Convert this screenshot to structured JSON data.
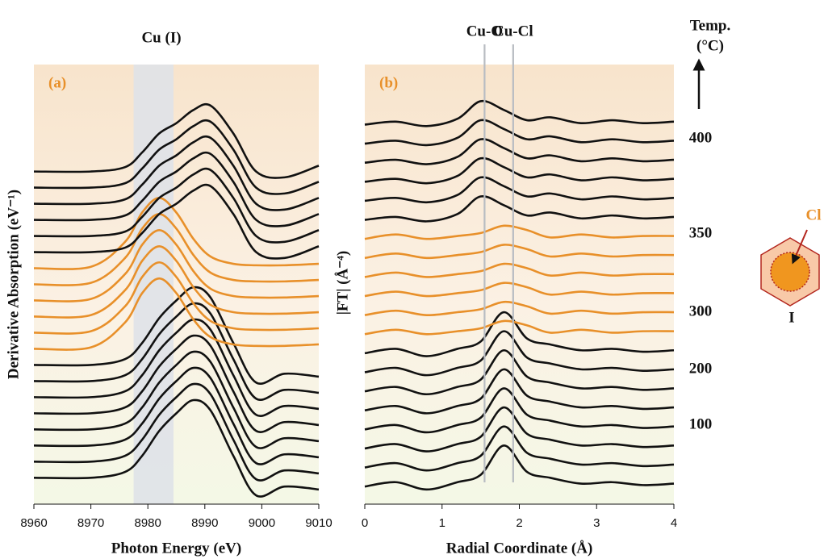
{
  "chart_data": [
    {
      "type": "line",
      "title": "Cu (I)",
      "panel_label": "(a)",
      "x_label": "Photon Energy (eV)",
      "y_label": "Derivative Absorption (eV⁻¹)",
      "xlim": [
        8960,
        9010
      ],
      "ylim": [
        0,
        30
      ],
      "xticks": [
        8960,
        8970,
        8980,
        8990,
        9000,
        9010
      ],
      "band": [
        8977.5,
        8984.5
      ],
      "x": [
        8960,
        8970,
        8976,
        8979,
        8982,
        8985,
        8988,
        8991,
        8995,
        8999,
        9004,
        9010
      ],
      "series": [
        {
          "color": "#111111",
          "values": [
            1.8,
            1.8,
            2.2,
            3.3,
            5.0,
            6.2,
            7.1,
            6.4,
            3.3,
            0.6,
            1.2,
            1.0
          ]
        },
        {
          "color": "#111111",
          "values": [
            2.9,
            2.9,
            3.3,
            4.4,
            6.1,
            7.3,
            8.2,
            7.5,
            4.4,
            1.7,
            2.3,
            2.1
          ]
        },
        {
          "color": "#111111",
          "values": [
            4.0,
            4.0,
            4.4,
            5.5,
            7.2,
            8.4,
            9.3,
            8.6,
            5.5,
            2.8,
            3.4,
            3.2
          ]
        },
        {
          "color": "#111111",
          "values": [
            5.1,
            5.1,
            5.5,
            6.6,
            8.3,
            9.5,
            10.4,
            9.7,
            6.6,
            3.9,
            4.5,
            4.3
          ]
        },
        {
          "color": "#111111",
          "values": [
            6.2,
            6.2,
            6.6,
            7.7,
            9.4,
            10.6,
            11.5,
            10.8,
            7.7,
            5.0,
            5.6,
            5.4
          ]
        },
        {
          "color": "#111111",
          "values": [
            7.3,
            7.3,
            7.7,
            8.8,
            10.5,
            11.7,
            12.6,
            11.9,
            8.8,
            6.1,
            6.7,
            6.5
          ]
        },
        {
          "color": "#111111",
          "values": [
            8.4,
            8.4,
            8.8,
            9.9,
            11.6,
            12.8,
            13.7,
            13.0,
            9.9,
            7.2,
            7.8,
            7.6
          ]
        },
        {
          "color": "#111111",
          "values": [
            9.5,
            9.5,
            9.9,
            11.0,
            12.7,
            13.9,
            14.8,
            14.1,
            11.0,
            8.3,
            8.9,
            8.7
          ]
        },
        {
          "color": "#e8902a",
          "values": [
            10.6,
            10.7,
            12.4,
            14.4,
            15.4,
            14.4,
            12.6,
            11.4,
            10.9,
            10.8,
            10.8,
            10.9
          ]
        },
        {
          "color": "#e8902a",
          "values": [
            11.7,
            11.8,
            13.5,
            15.5,
            16.5,
            15.5,
            13.7,
            12.5,
            12.0,
            11.9,
            11.9,
            12.0
          ]
        },
        {
          "color": "#e8902a",
          "values": [
            12.8,
            12.9,
            14.6,
            16.6,
            17.6,
            16.6,
            14.8,
            13.6,
            13.1,
            13.0,
            13.0,
            13.1
          ]
        },
        {
          "color": "#e8902a",
          "values": [
            13.9,
            14.0,
            15.7,
            17.7,
            18.7,
            17.7,
            15.9,
            14.7,
            14.2,
            14.1,
            14.1,
            14.2
          ]
        },
        {
          "color": "#e8902a",
          "values": [
            15.0,
            15.1,
            16.8,
            18.8,
            19.8,
            18.8,
            17.0,
            15.8,
            15.3,
            15.2,
            15.2,
            15.3
          ]
        },
        {
          "color": "#e8902a",
          "values": [
            16.1,
            16.2,
            17.9,
            19.9,
            20.9,
            19.9,
            18.1,
            16.9,
            16.4,
            16.3,
            16.3,
            16.4
          ]
        },
        {
          "color": "#111111",
          "values": [
            17.2,
            17.2,
            17.5,
            18.5,
            19.8,
            20.5,
            21.4,
            21.7,
            19.8,
            17.2,
            16.8,
            17.6
          ]
        },
        {
          "color": "#111111",
          "values": [
            18.3,
            18.3,
            18.6,
            19.6,
            20.9,
            21.6,
            22.5,
            22.8,
            20.9,
            18.3,
            17.9,
            18.7
          ]
        },
        {
          "color": "#111111",
          "values": [
            19.4,
            19.4,
            19.7,
            20.7,
            22.0,
            22.7,
            23.6,
            23.9,
            22.0,
            19.4,
            19.0,
            19.8
          ]
        },
        {
          "color": "#111111",
          "values": [
            20.5,
            20.5,
            20.8,
            21.8,
            23.1,
            23.8,
            24.7,
            25.0,
            23.1,
            20.5,
            20.1,
            20.9
          ]
        },
        {
          "color": "#111111",
          "values": [
            21.6,
            21.6,
            21.9,
            22.9,
            24.2,
            24.9,
            25.8,
            26.1,
            24.2,
            21.6,
            21.2,
            22.0
          ]
        },
        {
          "color": "#111111",
          "values": [
            22.7,
            22.7,
            23.0,
            24.0,
            25.3,
            26.0,
            26.9,
            27.2,
            25.3,
            22.7,
            22.3,
            23.1
          ]
        }
      ]
    },
    {
      "type": "line",
      "panel_label": "(b)",
      "x_label": "Radial Coordinate (Å)",
      "y_label": "|FT| (Å⁻⁴)",
      "xlim": [
        0,
        4
      ],
      "ylim": [
        0,
        30
      ],
      "xticks": [
        0,
        1,
        2,
        3,
        4
      ],
      "annotations": [
        {
          "label": "Cu-O",
          "x": 1.55
        },
        {
          "label": "Cu-Cl",
          "x": 1.92
        }
      ],
      "x": [
        0,
        0.4,
        0.8,
        1.2,
        1.5,
        1.8,
        2.1,
        2.4,
        2.8,
        3.2,
        3.6,
        4.0
      ],
      "series": [
        {
          "color": "#111111",
          "values": [
            1.2,
            1.5,
            1.0,
            1.5,
            2.0,
            4.0,
            2.2,
            1.8,
            1.4,
            1.5,
            1.3,
            1.4
          ]
        },
        {
          "color": "#111111",
          "values": [
            2.5,
            2.8,
            2.3,
            2.8,
            3.3,
            5.3,
            3.5,
            3.1,
            2.7,
            2.8,
            2.6,
            2.7
          ]
        },
        {
          "color": "#111111",
          "values": [
            3.8,
            4.1,
            3.6,
            4.1,
            4.6,
            6.6,
            4.8,
            4.4,
            4.0,
            4.1,
            3.9,
            4.0
          ]
        },
        {
          "color": "#111111",
          "values": [
            5.1,
            5.4,
            4.9,
            5.4,
            5.9,
            7.9,
            6.1,
            5.7,
            5.3,
            5.4,
            5.2,
            5.3
          ]
        },
        {
          "color": "#111111",
          "values": [
            6.4,
            6.7,
            6.2,
            6.7,
            7.2,
            9.2,
            7.4,
            7.0,
            6.6,
            6.7,
            6.5,
            6.6
          ]
        },
        {
          "color": "#111111",
          "values": [
            7.7,
            8.0,
            7.5,
            8.0,
            8.5,
            10.5,
            8.7,
            8.3,
            7.9,
            8.0,
            7.8,
            7.9
          ]
        },
        {
          "color": "#111111",
          "values": [
            9.0,
            9.3,
            8.8,
            9.3,
            9.8,
            11.8,
            10.0,
            9.6,
            9.2,
            9.3,
            9.1,
            9.2
          ]
        },
        {
          "color": "#111111",
          "values": [
            10.3,
            10.6,
            10.1,
            10.6,
            11.1,
            13.1,
            11.3,
            10.9,
            10.5,
            10.6,
            10.4,
            10.5
          ]
        },
        {
          "color": "#e8902a",
          "values": [
            11.6,
            11.9,
            11.6,
            11.8,
            12.0,
            12.5,
            12.2,
            11.7,
            11.9,
            11.7,
            11.8,
            11.8
          ]
        },
        {
          "color": "#e8902a",
          "values": [
            12.9,
            13.2,
            12.9,
            13.1,
            13.3,
            13.8,
            13.5,
            13.0,
            13.2,
            13.0,
            13.1,
            13.1
          ]
        },
        {
          "color": "#e8902a",
          "values": [
            14.2,
            14.5,
            14.2,
            14.4,
            14.6,
            15.1,
            14.8,
            14.3,
            14.5,
            14.3,
            14.4,
            14.4
          ]
        },
        {
          "color": "#e8902a",
          "values": [
            15.5,
            15.8,
            15.5,
            15.7,
            15.9,
            16.4,
            16.1,
            15.6,
            15.8,
            15.6,
            15.7,
            15.7
          ]
        },
        {
          "color": "#e8902a",
          "values": [
            16.8,
            17.1,
            16.8,
            17.0,
            17.2,
            17.7,
            17.4,
            16.9,
            17.1,
            16.9,
            17.0,
            17.0
          ]
        },
        {
          "color": "#e8902a",
          "values": [
            18.1,
            18.4,
            18.1,
            18.3,
            18.5,
            19.0,
            18.7,
            18.2,
            18.4,
            18.2,
            18.3,
            18.3
          ]
        },
        {
          "color": "#111111",
          "values": [
            19.4,
            19.6,
            19.3,
            19.8,
            21.0,
            20.4,
            19.7,
            19.9,
            19.5,
            19.7,
            19.5,
            19.6
          ]
        },
        {
          "color": "#111111",
          "values": [
            20.7,
            20.9,
            20.6,
            21.1,
            22.3,
            21.7,
            21.0,
            21.2,
            20.8,
            21.0,
            20.8,
            20.9
          ]
        },
        {
          "color": "#111111",
          "values": [
            22.0,
            22.2,
            21.9,
            22.4,
            23.6,
            23.0,
            22.3,
            22.5,
            22.1,
            22.3,
            22.1,
            22.2
          ]
        },
        {
          "color": "#111111",
          "values": [
            23.3,
            23.5,
            23.2,
            23.7,
            24.9,
            24.3,
            23.6,
            23.8,
            23.4,
            23.6,
            23.4,
            23.5
          ]
        },
        {
          "color": "#111111",
          "values": [
            24.6,
            24.8,
            24.5,
            25.0,
            26.2,
            25.6,
            24.9,
            25.1,
            24.7,
            24.9,
            24.7,
            24.8
          ]
        },
        {
          "color": "#111111",
          "values": [
            25.9,
            26.1,
            25.8,
            26.3,
            27.5,
            26.9,
            26.2,
            26.4,
            26.0,
            26.2,
            26.0,
            26.1
          ]
        }
      ]
    }
  ],
  "temperature": {
    "title": [
      "Temp.",
      "(°C)"
    ],
    "labels": [
      "400",
      "350",
      "300",
      "200",
      "100"
    ]
  },
  "icon": {
    "shell_label": "Cl",
    "name": "I"
  }
}
